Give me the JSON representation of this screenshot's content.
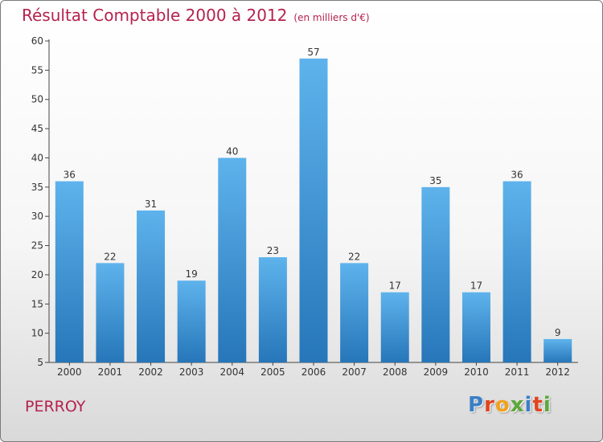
{
  "header": {
    "title": "Résultat Comptable 2000 à 2012",
    "subtitle": "(en milliers d'€)"
  },
  "footer": {
    "commune": "PERROY",
    "logo_letters": [
      {
        "char": "P",
        "color": "#3a7fc6"
      },
      {
        "char": "r",
        "color": "#e0451f"
      },
      {
        "char": "o",
        "color": "#f0a21d"
      },
      {
        "char": "x",
        "color": "#5aa83a"
      },
      {
        "char": "i",
        "color": "#3a7fc6"
      },
      {
        "char": "t",
        "color": "#e0451f"
      },
      {
        "char": "i",
        "color": "#5aa83a"
      }
    ]
  },
  "colors": {
    "title": "#b5224f",
    "bar_top": "#5eb3ec",
    "bar_bottom": "#2676b9",
    "axis": "#444444"
  },
  "chart_data": {
    "type": "bar",
    "title": "Résultat Comptable 2000 à 2012",
    "subtitle": "(en milliers d'€)",
    "categories": [
      "2000",
      "2001",
      "2002",
      "2003",
      "2004",
      "2005",
      "2006",
      "2007",
      "2008",
      "2009",
      "2010",
      "2011",
      "2012"
    ],
    "values": [
      36,
      22,
      31,
      19,
      40,
      23,
      57,
      22,
      17,
      35,
      17,
      36,
      9
    ],
    "ylim": [
      5,
      60
    ],
    "yticks": [
      5,
      10,
      15,
      20,
      25,
      30,
      35,
      40,
      45,
      50,
      55,
      60
    ],
    "xlabel": "",
    "ylabel": "",
    "grid": false,
    "data_labels": true
  }
}
